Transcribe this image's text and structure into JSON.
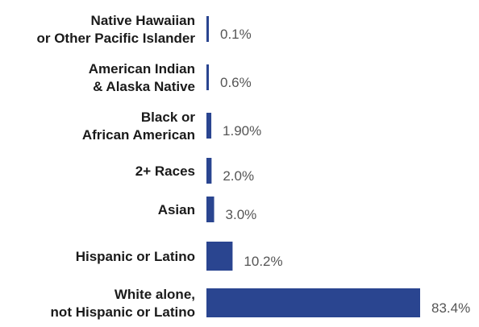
{
  "chart_data": {
    "type": "bar",
    "orientation": "horizontal",
    "categories": [
      [
        "Native Hawaiian",
        "or Other Pacific Islander"
      ],
      [
        "American Indian",
        "& Alaska Native"
      ],
      [
        "Black or",
        "African American"
      ],
      [
        "2+ Races"
      ],
      [
        "Asian"
      ],
      [
        "Hispanic or Latino"
      ],
      [
        "White alone,",
        "not Hispanic or Latino"
      ]
    ],
    "values": [
      0.1,
      0.6,
      1.9,
      2.0,
      3.0,
      10.2,
      83.4
    ],
    "value_labels": [
      "0.1%",
      "0.6%",
      "1.90%",
      "2.0%",
      "3.0%",
      "10.2%",
      "83.4%"
    ],
    "bar_color": "#2a4590",
    "title": "",
    "xlabel": "",
    "ylabel": "",
    "xlim": [
      0,
      83.4
    ],
    "grid": false,
    "legend": "none"
  }
}
